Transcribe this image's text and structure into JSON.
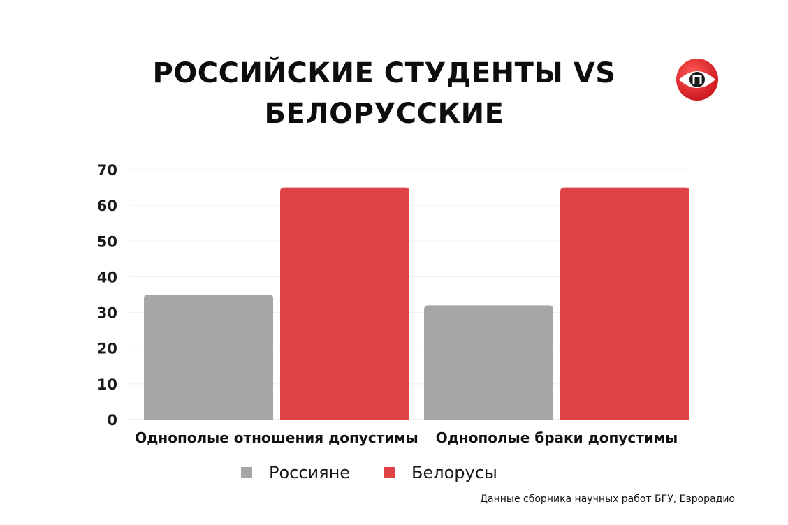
{
  "title_line1": "РОССИЙСКИЕ СТУДЕНТЫ VS",
  "title_line2": "БЕЛОРУССКИЕ",
  "logo_icon": "eye-logo-icon",
  "source": "Данные сборника научных работ БГУ, Еврорадио",
  "chart_data": {
    "type": "bar",
    "title": "РОССИЙСКИЕ СТУДЕНТЫ VS БЕЛОРУССКИЕ",
    "categories": [
      "Однополые отношения допустимы",
      "Однополые браки допустимы"
    ],
    "series": [
      {
        "name": "Россияне",
        "values": [
          35,
          32
        ],
        "color": "#a6a6a6"
      },
      {
        "name": "Белорусы",
        "values": [
          65,
          65
        ],
        "color": "#df4346"
      }
    ],
    "ylim": [
      0,
      70
    ],
    "yticks": [
      0,
      10,
      20,
      30,
      40,
      50,
      60,
      70
    ],
    "xlabel": "",
    "ylabel": "",
    "grid": true,
    "legend": "bottom"
  }
}
